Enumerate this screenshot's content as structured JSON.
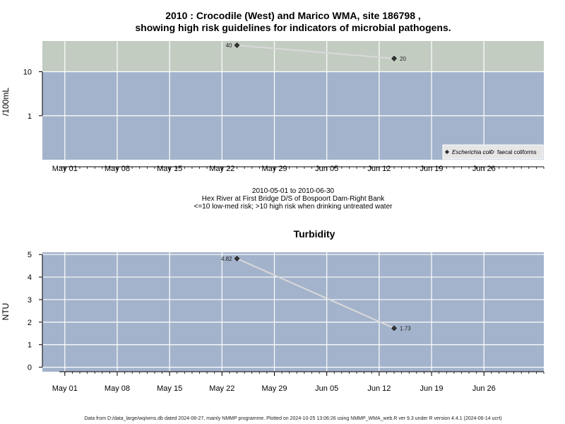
{
  "header": {
    "title_line1": "2010 : Crocodile (West) and Marico WMA, site 186798 ,",
    "title_line2": "showing high risk guidelines for indicators of microbial pathogens."
  },
  "middle": {
    "date_range": "2010-05-01 to 2010-06-30",
    "site_name": "Hex River at First Bridge D/S of Bospoort Dam-Right Bank",
    "risk_note": "<=10 low-med risk; >10 high risk when drinking untreated water"
  },
  "footer": {
    "text": "Data from D:/data_large/wq/wms.db dated 2024-08-27, mainly NMMP programme. Plotted on 2024-10-25 13:06:26 using NMMP_WMA_web.R ver 9.3 under R version 4.4.1 (2024-06-14 ucrt)"
  },
  "colors": {
    "low_risk_band": "#a3b3cb",
    "high_risk_band": "#c2ccc1",
    "turbidity_bg": "#a3b3cb",
    "grid": "#ffffff",
    "line": "#d9d9d9",
    "point": "#333333",
    "legend_bg": "#e6e6e6"
  },
  "chart_data": [
    {
      "type": "line",
      "title": "",
      "ylabel": "/100mL",
      "yscale": "log",
      "ylim": [
        0.1,
        50
      ],
      "yticks": [
        1,
        10
      ],
      "ytick_labels": [
        "1",
        "10"
      ],
      "threshold": 10,
      "x_range": [
        "2010-04-28",
        "2010-07-04"
      ],
      "xticks": [
        "2010-05-01",
        "2010-05-08",
        "2010-05-15",
        "2010-05-22",
        "2010-05-29",
        "2010-06-05",
        "2010-06-12",
        "2010-06-19",
        "2010-06-26"
      ],
      "xtick_labels": [
        "May 01",
        "May 08",
        "May 15",
        "May 22",
        "May 29",
        "Jun 05",
        "Jun 12",
        "Jun 19",
        "Jun 26"
      ],
      "series": [
        {
          "name": "Escherichia coli",
          "marker": "filled-diamond",
          "points": [
            {
              "x": "2010-05-24",
              "y": 40,
              "label": "40"
            },
            {
              "x": "2010-06-14",
              "y": 20,
              "label": "20"
            }
          ]
        },
        {
          "name": "faecal coliforms",
          "marker": "open-diamond",
          "points": []
        }
      ],
      "legend_position": "bottom-right",
      "grid": true
    },
    {
      "type": "line",
      "title": "Turbidity",
      "ylabel": "NTU",
      "yscale": "linear",
      "ylim": [
        -0.2,
        5.1
      ],
      "yticks": [
        0,
        1,
        2,
        3,
        4,
        5
      ],
      "ytick_labels": [
        "0",
        "1",
        "2",
        "3",
        "4",
        "5"
      ],
      "x_range": [
        "2010-04-28",
        "2010-07-04"
      ],
      "xticks": [
        "2010-05-01",
        "2010-05-08",
        "2010-05-15",
        "2010-05-22",
        "2010-05-29",
        "2010-06-05",
        "2010-06-12",
        "2010-06-19",
        "2010-06-26"
      ],
      "xtick_labels": [
        "May 01",
        "May 08",
        "May 15",
        "May 22",
        "May 29",
        "Jun 05",
        "Jun 12",
        "Jun 19",
        "Jun 26"
      ],
      "series": [
        {
          "name": "",
          "marker": "filled-diamond",
          "points": [
            {
              "x": "2010-05-24",
              "y": 4.82,
              "label": "4.82"
            },
            {
              "x": "2010-06-14",
              "y": 1.73,
              "label": "1.73"
            }
          ]
        }
      ],
      "grid": true
    }
  ]
}
